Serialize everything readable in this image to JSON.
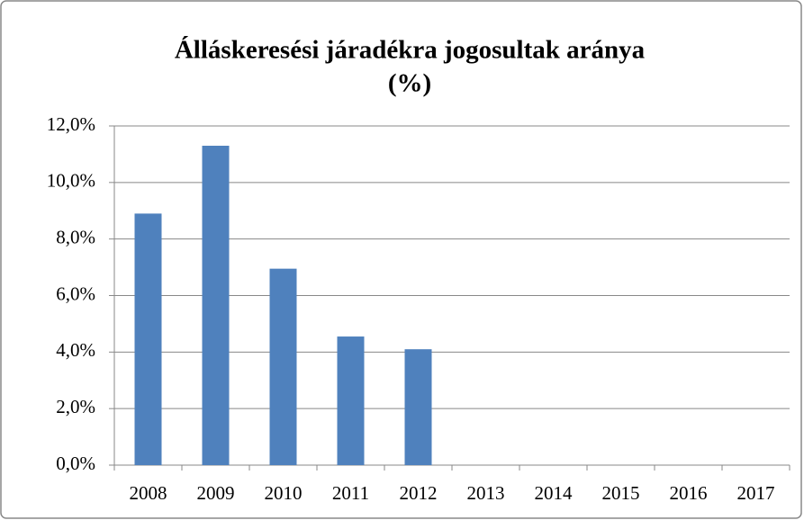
{
  "chart_data": {
    "type": "bar",
    "title": [
      "Álláskeresési járadékra jogosultak aránya",
      "(%)"
    ],
    "categories": [
      "2008",
      "2009",
      "2010",
      "2011",
      "2012",
      "2013",
      "2014",
      "2015",
      "2016",
      "2017"
    ],
    "values": [
      8.9,
      11.3,
      6.95,
      4.55,
      4.1,
      null,
      null,
      null,
      null,
      null
    ],
    "color": "#4f81bd",
    "ylim": [
      0,
      12
    ],
    "yticks": [
      {
        "value": 0,
        "label": "0,0%"
      },
      {
        "value": 2,
        "label": "2,0%"
      },
      {
        "value": 4,
        "label": "4,0%"
      },
      {
        "value": 6,
        "label": "6,0%"
      },
      {
        "value": 8,
        "label": "8,0%"
      },
      {
        "value": 10,
        "label": "10,0%"
      },
      {
        "value": 12,
        "label": "12,0%"
      }
    ],
    "grid": true
  }
}
